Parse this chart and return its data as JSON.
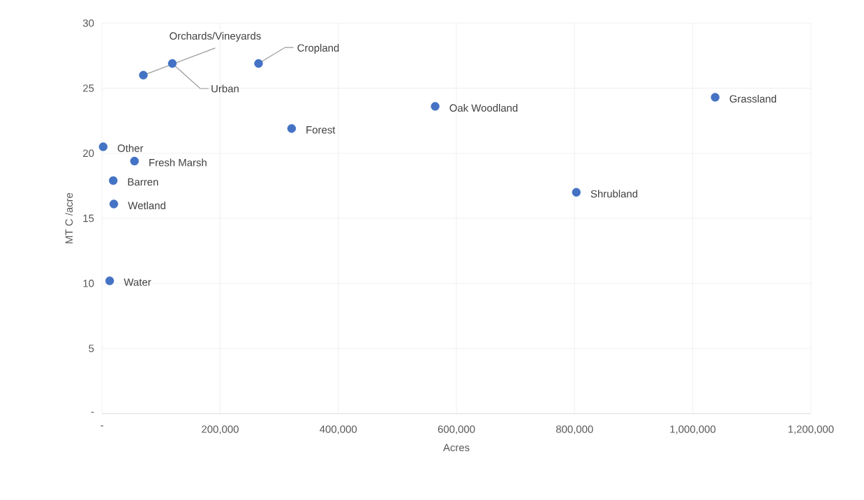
{
  "chart_data": {
    "type": "scatter",
    "xlabel": "Acres",
    "ylabel": "MT C /acre",
    "x": [
      70000,
      119000,
      265000,
      321000,
      564000,
      1038000,
      803000,
      2000,
      55000,
      19000,
      20000,
      13000
    ],
    "values": [
      26.0,
      26.9,
      26.9,
      21.9,
      23.6,
      24.3,
      17.0,
      20.5,
      19.4,
      17.9,
      16.1,
      10.2
    ],
    "color": "#4472c4",
    "marker": "circle",
    "grid": true,
    "xlim": [
      0,
      1200000
    ],
    "ylim": [
      0,
      30
    ],
    "xticks": [
      {
        "value": 0,
        "label": "-"
      },
      {
        "value": 200000,
        "label": "200,000"
      },
      {
        "value": 400000,
        "label": "400,000"
      },
      {
        "value": 600000,
        "label": "600,000"
      },
      {
        "value": 800000,
        "label": "800,000"
      },
      {
        "value": 1000000,
        "label": "1,000,000"
      },
      {
        "value": 1200000,
        "label": "1,200,000"
      }
    ],
    "yticks": [
      {
        "value": 0,
        "label": "-"
      },
      5,
      10,
      15,
      20,
      25,
      30
    ],
    "annotations": [
      {
        "text": "Orchards/Vineyards",
        "x": 70000,
        "y": 26.0
      },
      {
        "text": "Urban",
        "x": 119000,
        "y": 26.9
      },
      {
        "text": "Cropland",
        "x": 265000,
        "y": 26.9
      },
      {
        "text": "Forest",
        "x": 321000,
        "y": 21.9
      },
      {
        "text": "Oak Woodland",
        "x": 564000,
        "y": 23.6
      },
      {
        "text": "Grassland",
        "x": 1038000,
        "y": 24.3
      },
      {
        "text": "Shrubland",
        "x": 803000,
        "y": 17.0
      },
      {
        "text": "Other",
        "x": 2000,
        "y": 20.5
      },
      {
        "text": "Fresh Marsh",
        "x": 55000,
        "y": 19.4
      },
      {
        "text": "Barren",
        "x": 19000,
        "y": 17.9
      },
      {
        "text": "Wetland",
        "x": 20000,
        "y": 16.1
      },
      {
        "text": "Water",
        "x": 13000,
        "y": 10.2
      }
    ]
  }
}
